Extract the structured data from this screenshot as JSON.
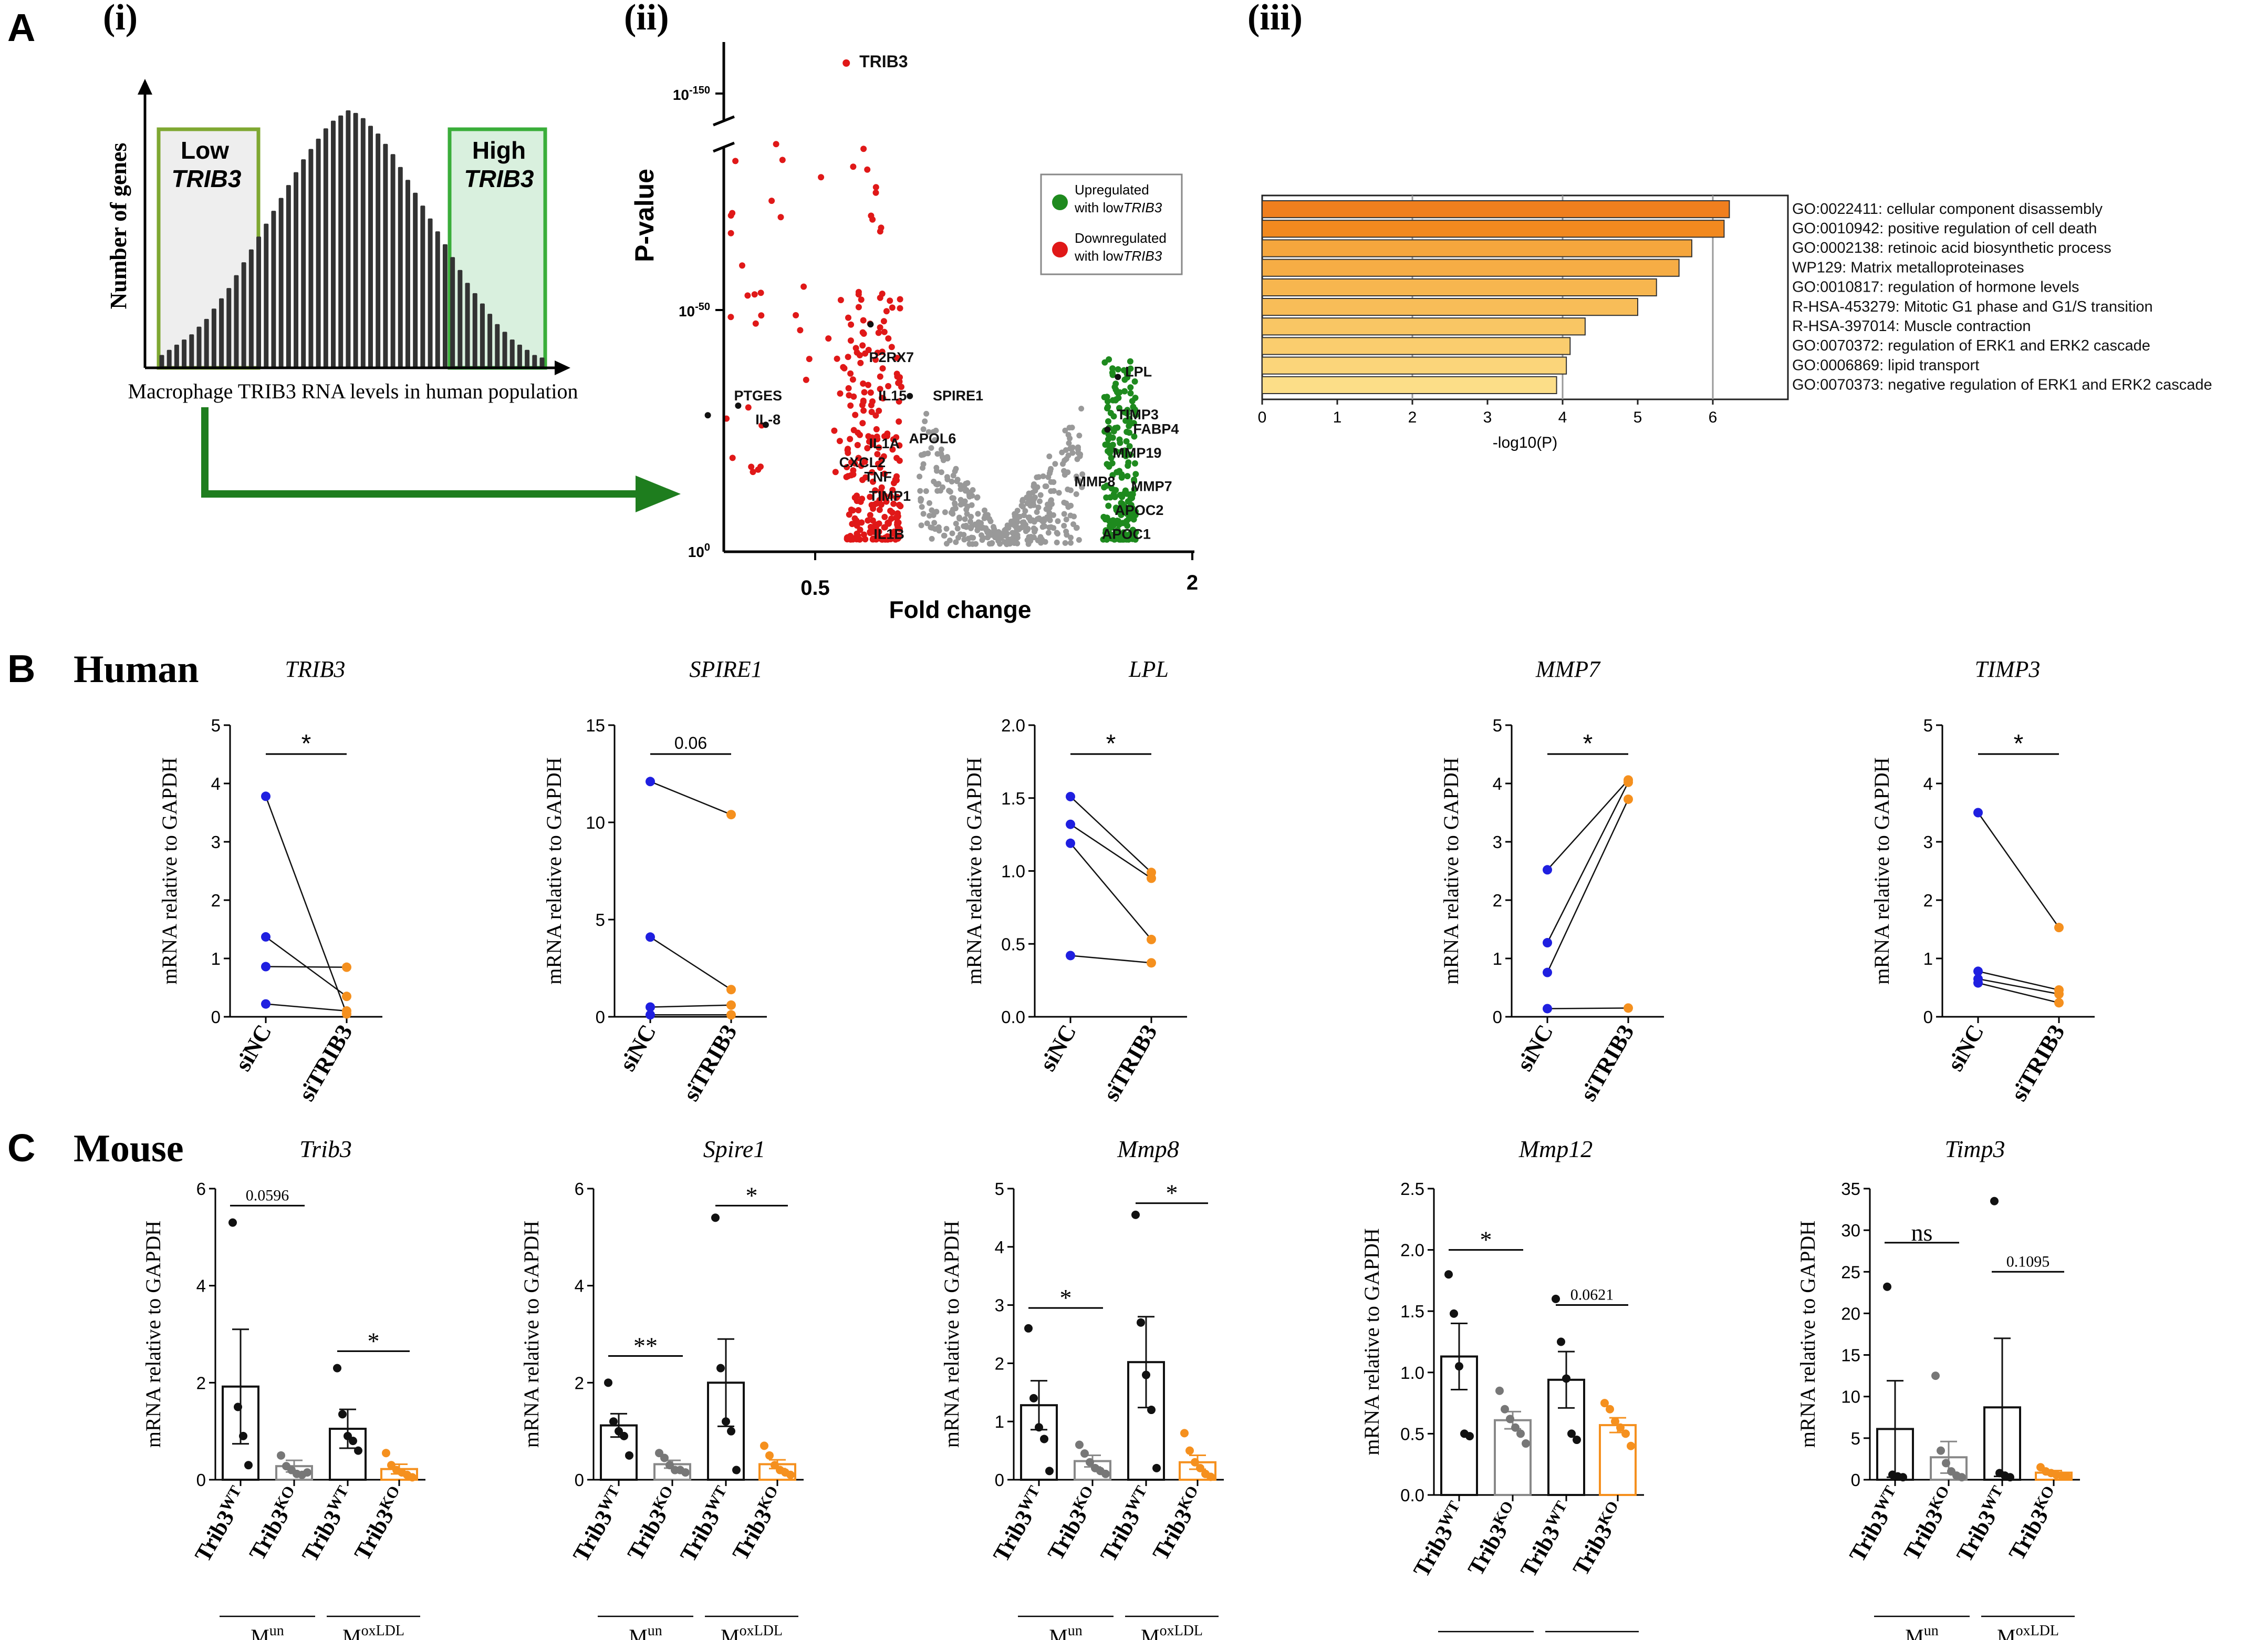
{
  "panel_letters": {
    "A": "A",
    "B": "B",
    "C": "C"
  },
  "subpanel_labels": {
    "i": "(i)",
    "ii": "(ii)",
    "iii": "(iii)"
  },
  "row_titles": {
    "human": "Human",
    "mouse": "Mouse"
  },
  "colors": {
    "blue": "#1f1fe0",
    "orange": "#f5901e",
    "red": "#e01818",
    "green": "#1e8a1e",
    "grey": "#999999",
    "arrow": "#1e7d1e",
    "low_box": "#7fa832",
    "high_box": "#3aae3a"
  },
  "chart_data": [
    {
      "id": "A-i",
      "type": "histogram",
      "ylabel": "Number of genes",
      "xlabel": "Macrophage TRIB3 RNA levels in human population",
      "low_label_1": "Low",
      "low_label_2": "TRIB3",
      "high_label_1": "High",
      "high_label_2": "TRIB3",
      "bar_heights": [
        0.05,
        0.07,
        0.09,
        0.11,
        0.13,
        0.16,
        0.19,
        0.23,
        0.27,
        0.31,
        0.36,
        0.41,
        0.46,
        0.51,
        0.56,
        0.61,
        0.66,
        0.71,
        0.76,
        0.81,
        0.85,
        0.89,
        0.93,
        0.96,
        0.98,
        1.0,
        0.99,
        0.97,
        0.94,
        0.91,
        0.87,
        0.83,
        0.78,
        0.73,
        0.68,
        0.63,
        0.58,
        0.53,
        0.48,
        0.43,
        0.38,
        0.33,
        0.29,
        0.25,
        0.21,
        0.17,
        0.14,
        0.11,
        0.09,
        0.07,
        0.05,
        0.04
      ]
    },
    {
      "id": "A-ii",
      "type": "scatter",
      "title": "Volcano plot",
      "xlabel": "Fold change",
      "ylabel": "P-value",
      "xticks": [
        "0.5",
        "2"
      ],
      "yticks": {
        "top": "10",
        "top_exp": "-150",
        "mid": "10",
        "mid_exp": "-50",
        "bottom": "10",
        "bottom_exp": "0"
      },
      "legend": {
        "up_1": "Upregulated",
        "up_2": "with low",
        "up_3": "TRIB3",
        "down_1": "Downregulated",
        "down_2": "with low",
        "down_3": "TRIB3"
      },
      "labels": [
        {
          "text": "TRIB3",
          "fc": 0.62,
          "nlp": 150
        },
        {
          "text": "P2RX7",
          "fc": 0.64,
          "nlp": 40
        },
        {
          "text": "PTGES",
          "fc": 0.41,
          "nlp": 32
        },
        {
          "text": "IL-8",
          "fc": 0.44,
          "nlp": 27
        },
        {
          "text": "IL15",
          "fc": 0.66,
          "nlp": 32
        },
        {
          "text": "SPIRE1",
          "fc": 0.79,
          "nlp": 32
        },
        {
          "text": "IL1A",
          "fc": 0.64,
          "nlp": 22
        },
        {
          "text": "APOL6",
          "fc": 0.73,
          "nlp": 23
        },
        {
          "text": "CXCL2",
          "fc": 0.58,
          "nlp": 18
        },
        {
          "text": "TNF",
          "fc": 0.63,
          "nlp": 15
        },
        {
          "text": "TIMP1",
          "fc": 0.64,
          "nlp": 11
        },
        {
          "text": "IL1B",
          "fc": 0.65,
          "nlp": 3
        },
        {
          "text": "LPL",
          "fc": 1.49,
          "nlp": 37
        },
        {
          "text": "TIMP3",
          "fc": 1.45,
          "nlp": 28
        },
        {
          "text": "FABP4",
          "fc": 1.53,
          "nlp": 25
        },
        {
          "text": "MMP19",
          "fc": 1.43,
          "nlp": 20
        },
        {
          "text": "MMP8",
          "fc": 1.26,
          "nlp": 14
        },
        {
          "text": "MMP7",
          "fc": 1.52,
          "nlp": 13
        },
        {
          "text": "APOC2",
          "fc": 1.44,
          "nlp": 8
        },
        {
          "text": "APOC1",
          "fc": 1.38,
          "nlp": 3
        }
      ]
    },
    {
      "id": "A-iii",
      "type": "bar",
      "orientation": "horizontal",
      "xlabel": "-log10(P)",
      "xlim": [
        0,
        7
      ],
      "xticks": [
        "0",
        "1",
        "2",
        "3",
        "4",
        "5",
        "6"
      ],
      "categories": [
        "GO:0022411: cellular component disassembly",
        "GO:0010942: positive regulation of cell death",
        "GO:0002138: retinoic acid biosynthetic process",
        "WP129: Matrix metalloproteinases",
        "GO:0010817: regulation of hormone levels",
        "R-HSA-453279: Mitotic G1 phase and G1/S transition",
        "R-HSA-397014: Muscle contraction",
        "GO:0070372: regulation of ERK1 and ERK2 cascade",
        "GO:0006869: lipid transport",
        "GO:0070373: negative regulation of ERK1 and ERK2 cascade"
      ],
      "values": [
        6.22,
        6.15,
        5.72,
        5.55,
        5.25,
        5.0,
        4.3,
        4.1,
        4.05,
        3.92
      ],
      "bar_colors": [
        "#f07f1e",
        "#f2891f",
        "#f5a63d",
        "#f6ad45",
        "#f7b64f",
        "#f8bd58",
        "#f9c664",
        "#facd6e",
        "#fbd57a",
        "#fcde88"
      ]
    },
    {
      "id": "B-TRIB3",
      "type": "paired",
      "title": "TRIB3",
      "ylabel": "mRNA relative to GAPDH",
      "ylim": [
        0,
        5
      ],
      "yticks": [
        "0",
        "1",
        "2",
        "3",
        "4",
        "5"
      ],
      "categories": [
        "siNC",
        "siTRIB3"
      ],
      "sig": "*",
      "pairs": [
        [
          3.78,
          0.05
        ],
        [
          1.37,
          0.35
        ],
        [
          0.86,
          0.85
        ],
        [
          0.22,
          0.1
        ]
      ]
    },
    {
      "id": "B-SPIRE1",
      "type": "paired",
      "title": "SPIRE1",
      "ylabel": "mRNA relative to GAPDH",
      "ylim": [
        0,
        15
      ],
      "yticks": [
        "0",
        "5",
        "10",
        "15"
      ],
      "categories": [
        "siNC",
        "siTRIB3"
      ],
      "sig": "0.06",
      "pairs": [
        [
          12.1,
          10.4
        ],
        [
          4.1,
          1.4
        ],
        [
          0.5,
          0.6
        ],
        [
          0.1,
          0.1
        ]
      ]
    },
    {
      "id": "B-LPL",
      "type": "paired",
      "title": "LPL",
      "ylabel": "mRNA relative to GAPDH",
      "ylim": [
        0,
        2
      ],
      "yticks": [
        "0.0",
        "0.5",
        "1.0",
        "1.5",
        "2.0"
      ],
      "categories": [
        "siNC",
        "siTRIB3"
      ],
      "sig": "*",
      "pairs": [
        [
          1.51,
          0.99
        ],
        [
          1.32,
          0.95
        ],
        [
          1.19,
          0.53
        ],
        [
          0.42,
          0.37
        ]
      ]
    },
    {
      "id": "B-MMP7",
      "type": "paired",
      "title": "MMP7",
      "ylabel": "mRNA relative to GAPDH",
      "ylim": [
        0,
        5
      ],
      "yticks": [
        "0",
        "1",
        "2",
        "3",
        "4",
        "5"
      ],
      "categories": [
        "siNC",
        "siTRIB3"
      ],
      "sig": "*",
      "pairs": [
        [
          2.52,
          4.06
        ],
        [
          1.27,
          4.02
        ],
        [
          0.76,
          3.73
        ],
        [
          0.14,
          0.15
        ]
      ]
    },
    {
      "id": "B-TIMP3",
      "type": "paired",
      "title": "TIMP3",
      "ylabel": "mRNA relative to GAPDH",
      "ylim": [
        0,
        5
      ],
      "yticks": [
        "0",
        "1",
        "2",
        "3",
        "4",
        "5"
      ],
      "categories": [
        "siNC",
        "siTRIB3"
      ],
      "sig": "*",
      "pairs": [
        [
          3.5,
          1.53
        ],
        [
          0.78,
          0.46
        ],
        [
          0.65,
          0.39
        ],
        [
          0.58,
          0.24
        ]
      ]
    },
    {
      "id": "C-Trib3",
      "type": "bar",
      "title": "Trib3",
      "ylabel": "mRNA relative to GAPDH",
      "ylim": [
        0,
        6
      ],
      "yticks": [
        "0",
        "2",
        "4",
        "6"
      ],
      "categories": [
        "Trib3WT",
        "Trib3KO",
        "Trib3WT",
        "Trib3KO"
      ],
      "cat_base": "Trib3",
      "cat_sup": [
        "WT",
        "KO",
        "WT",
        "KO"
      ],
      "groups": [
        "M",
        "M"
      ],
      "group_sup": [
        "un",
        "oxLDL"
      ],
      "means": [
        1.92,
        0.28,
        1.05,
        0.22
      ],
      "sems": [
        1.18,
        0.12,
        0.4,
        0.1
      ],
      "points": [
        [
          5.3,
          1.5,
          0.9,
          0.3
        ],
        [
          0.5,
          0.28,
          0.2,
          0.12,
          0.1,
          0.15
        ],
        [
          2.3,
          1.35,
          0.9,
          0.8,
          0.6
        ],
        [
          0.55,
          0.3,
          0.2,
          0.15,
          0.1,
          0.05
        ]
      ],
      "sigs": [
        {
          "a": 0,
          "b": 1,
          "label": "0.0596",
          "y": 5.65
        },
        {
          "a": 2,
          "b": 3,
          "label": "*",
          "y": 2.65
        }
      ]
    },
    {
      "id": "C-Spire1",
      "type": "bar",
      "title": "Spire1",
      "ylabel": "mRNA relative to GAPDH",
      "ylim": [
        0,
        6
      ],
      "yticks": [
        "0",
        "2",
        "4",
        "6"
      ],
      "categories": [
        "Trib3WT",
        "Trib3KO",
        "Trib3WT",
        "Trib3KO"
      ],
      "cat_base": "Trib3",
      "cat_sup": [
        "WT",
        "KO",
        "WT",
        "KO"
      ],
      "groups": [
        "M",
        "M"
      ],
      "group_sup": [
        "un",
        "oxLDL"
      ],
      "means": [
        1.12,
        0.32,
        2.0,
        0.32
      ],
      "sems": [
        0.24,
        0.08,
        0.9,
        0.09
      ],
      "points": [
        [
          2.0,
          1.2,
          1.0,
          0.9,
          0.5
        ],
        [
          0.55,
          0.45,
          0.3,
          0.2,
          0.2,
          0.15
        ],
        [
          5.4,
          2.3,
          1.2,
          1.0,
          0.2
        ],
        [
          0.7,
          0.5,
          0.3,
          0.2,
          0.15,
          0.1
        ]
      ],
      "sigs": [
        {
          "a": 0,
          "b": 1,
          "label": "**",
          "y": 2.55
        },
        {
          "a": 2,
          "b": 3,
          "label": "*",
          "y": 5.65
        }
      ]
    },
    {
      "id": "C-Mmp8",
      "type": "bar",
      "title": "Mmp8",
      "ylabel": "mRNA relative to GAPDH",
      "ylim": [
        0,
        5
      ],
      "yticks": [
        "0",
        "1",
        "2",
        "3",
        "4",
        "5"
      ],
      "categories": [
        "Trib3WT",
        "Trib3KO",
        "Trib3WT",
        "Trib3KO"
      ],
      "cat_base": "Trib3",
      "cat_sup": [
        "WT",
        "KO",
        "WT",
        "KO"
      ],
      "groups": [
        "M",
        "M"
      ],
      "group_sup": [
        "un",
        "oxLDL"
      ],
      "means": [
        1.28,
        0.32,
        2.02,
        0.3
      ],
      "sems": [
        0.42,
        0.1,
        0.78,
        0.12
      ],
      "points": [
        [
          2.6,
          1.4,
          0.9,
          0.7,
          0.15
        ],
        [
          0.6,
          0.45,
          0.3,
          0.2,
          0.15,
          0.1
        ],
        [
          4.55,
          2.7,
          1.8,
          1.2,
          0.2
        ],
        [
          0.8,
          0.5,
          0.3,
          0.2,
          0.1,
          0.05
        ]
      ],
      "sigs": [
        {
          "a": 0,
          "b": 1,
          "label": "*",
          "y": 2.95
        },
        {
          "a": 2,
          "b": 3,
          "label": "*",
          "y": 4.75
        }
      ]
    },
    {
      "id": "C-Mmp12",
      "type": "bar",
      "title": "Mmp12",
      "ylabel": "mRNA relative to GAPDH",
      "ylim": [
        0,
        2.5
      ],
      "yticks": [
        "0.0",
        "0.5",
        "1.0",
        "1.5",
        "2.0",
        "2.5"
      ],
      "categories": [
        "Trib3WT",
        "Trib3KO",
        "Trib3WT",
        "Trib3KO"
      ],
      "cat_base": "Trib3",
      "cat_sup": [
        "WT",
        "KO",
        "WT",
        "KO"
      ],
      "groups": [
        "M",
        "M"
      ],
      "group_sup": [
        "un",
        "oxLDL"
      ],
      "means": [
        1.13,
        0.61,
        0.94,
        0.57
      ],
      "sems": [
        0.27,
        0.07,
        0.23,
        0.06
      ],
      "points": [
        [
          1.8,
          1.48,
          1.05,
          0.5,
          0.48
        ],
        [
          0.85,
          0.7,
          0.62,
          0.55,
          0.5,
          0.42
        ],
        [
          1.6,
          1.25,
          0.95,
          0.5,
          0.45
        ],
        [
          0.75,
          0.7,
          0.6,
          0.55,
          0.5,
          0.4
        ]
      ],
      "sigs": [
        {
          "a": 0,
          "b": 1,
          "label": "*",
          "y": 2.0
        },
        {
          "a": 2,
          "b": 3,
          "label": "0.0621",
          "y": 1.55
        }
      ]
    },
    {
      "id": "C-Timp3",
      "type": "bar",
      "title": "Timp3",
      "ylabel": "mRNA relative to GAPDH",
      "ylim": [
        0,
        35
      ],
      "yticks": [
        "0",
        "5",
        "10",
        "15",
        "20",
        "25",
        "30",
        "35"
      ],
      "categories": [
        "Trib3WT",
        "Trib3KO",
        "Trib3WT",
        "Trib3KO"
      ],
      "cat_base": "Trib3",
      "cat_sup": [
        "WT",
        "KO",
        "WT",
        "KO"
      ],
      "groups": [
        "M",
        "M"
      ],
      "group_sup": [
        "un",
        "oxLDL"
      ],
      "means": [
        6.1,
        2.7,
        8.7,
        0.85
      ],
      "sems": [
        5.8,
        1.9,
        8.3,
        0.25
      ],
      "points": [
        [
          23.2,
          0.6,
          0.4,
          0.3
        ],
        [
          12.5,
          3.5,
          2.0,
          1.0,
          0.5,
          0.3
        ],
        [
          33.5,
          0.8,
          0.5,
          0.3
        ],
        [
          1.5,
          1.0,
          0.8,
          0.6,
          0.5,
          0.4
        ]
      ],
      "sigs": [
        {
          "a": 0,
          "b": 1,
          "label": "ns",
          "y": 28.5
        },
        {
          "a": 2,
          "b": 3,
          "label": "0.1095",
          "y": 25.0
        }
      ]
    }
  ]
}
